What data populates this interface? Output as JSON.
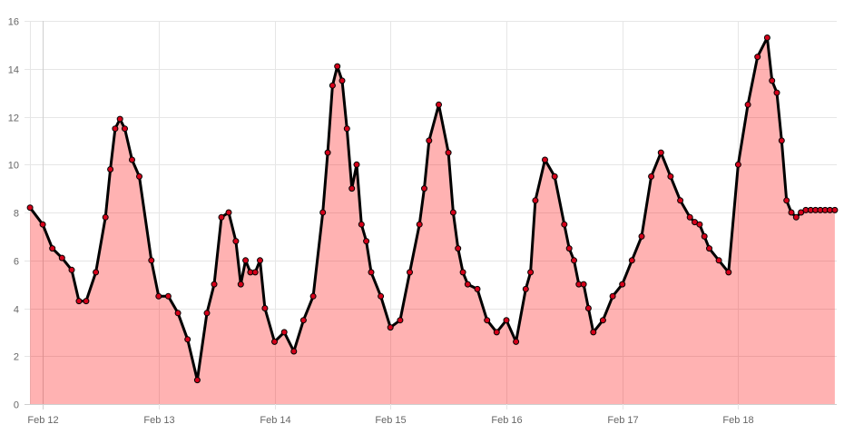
{
  "chart_data": {
    "type": "area",
    "title": "",
    "xlabel": "",
    "ylabel": "",
    "ylim": [
      0,
      16
    ],
    "y_ticks": [
      0,
      2,
      4,
      6,
      8,
      10,
      12,
      14,
      16
    ],
    "x_ticks": [
      "Feb 12",
      "Feb 13",
      "Feb 14",
      "Feb 15",
      "Feb 16",
      "Feb 17",
      "Feb 18"
    ],
    "x_range_days": [
      11.89,
      18.85
    ],
    "grid": true,
    "legend": "none",
    "colors": {
      "line": "#000000",
      "fill": "rgba(255,0,0,0.30)",
      "point_fill": "#d4001a",
      "point_stroke": "#000000",
      "grid": "#e6e6e6",
      "tick_text": "#666666"
    },
    "series": [
      {
        "x": [
          "2013-02-11 21:23",
          "2013-02-12 00:00",
          "2013-02-12 02:00",
          "2013-02-12 04:00",
          "2013-02-12 06:00",
          "2013-02-12 07:30",
          "2013-02-12 09:00",
          "2013-02-12 11:00",
          "2013-02-12 13:00",
          "2013-02-12 14:00",
          "2013-02-12 15:00",
          "2013-02-12 16:00",
          "2013-02-12 17:00",
          "2013-02-12 18:30",
          "2013-02-12 20:00",
          "2013-02-12 22:30",
          "2013-02-13 00:00",
          "2013-02-13 02:00",
          "2013-02-13 04:00",
          "2013-02-13 06:00",
          "2013-02-13 08:00",
          "2013-02-13 10:00",
          "2013-02-13 11:30",
          "2013-02-13 13:00",
          "2013-02-13 14:30",
          "2013-02-13 16:00",
          "2013-02-13 17:00",
          "2013-02-13 18:00",
          "2013-02-13 19:00",
          "2013-02-13 20:00",
          "2013-02-13 21:00",
          "2013-02-13 22:00",
          "2013-02-14 00:00",
          "2013-02-14 02:00",
          "2013-02-14 04:00",
          "2013-02-14 06:00",
          "2013-02-14 08:00",
          "2013-02-14 10:00",
          "2013-02-14 11:00",
          "2013-02-14 12:00",
          "2013-02-14 13:00",
          "2013-02-14 14:00",
          "2013-02-14 15:00",
          "2013-02-14 16:00",
          "2013-02-14 17:00",
          "2013-02-14 18:00",
          "2013-02-14 19:00",
          "2013-02-14 20:00",
          "2013-02-14 22:00",
          "2013-02-15 00:00",
          "2013-02-15 02:00",
          "2013-02-15 04:00",
          "2013-02-15 06:00",
          "2013-02-15 07:00",
          "2013-02-15 08:00",
          "2013-02-15 10:00",
          "2013-02-15 12:00",
          "2013-02-15 13:00",
          "2013-02-15 14:00",
          "2013-02-15 15:00",
          "2013-02-15 16:00",
          "2013-02-15 18:00",
          "2013-02-15 20:00",
          "2013-02-15 22:00",
          "2013-02-16 00:00",
          "2013-02-16 02:00",
          "2013-02-16 04:00",
          "2013-02-16 05:00",
          "2013-02-16 06:00",
          "2013-02-16 08:00",
          "2013-02-16 10:00",
          "2013-02-16 12:00",
          "2013-02-16 13:00",
          "2013-02-16 14:00",
          "2013-02-16 15:00",
          "2013-02-16 16:00",
          "2013-02-16 17:00",
          "2013-02-16 18:00",
          "2013-02-16 20:00",
          "2013-02-16 22:00",
          "2013-02-17 00:00",
          "2013-02-17 02:00",
          "2013-02-17 04:00",
          "2013-02-17 06:00",
          "2013-02-17 08:00",
          "2013-02-17 10:00",
          "2013-02-17 12:00",
          "2013-02-17 14:00",
          "2013-02-17 15:00",
          "2013-02-17 16:00",
          "2013-02-17 17:00",
          "2013-02-17 18:00",
          "2013-02-17 20:00",
          "2013-02-17 22:00",
          "2013-02-18 00:00",
          "2013-02-18 02:00",
          "2013-02-18 04:00",
          "2013-02-18 06:00",
          "2013-02-18 07:00",
          "2013-02-18 08:00",
          "2013-02-18 09:00",
          "2013-02-18 10:00",
          "2013-02-18 11:00",
          "2013-02-18 12:00",
          "2013-02-18 13:00",
          "2013-02-18 14:00",
          "2013-02-18 15:00",
          "2013-02-18 16:00",
          "2013-02-18 17:00",
          "2013-02-18 18:00",
          "2013-02-18 19:00",
          "2013-02-18 20:00"
        ],
        "values": [
          8.2,
          7.5,
          6.5,
          6.1,
          5.6,
          4.3,
          4.3,
          5.5,
          7.8,
          9.8,
          11.5,
          11.9,
          11.5,
          10.2,
          9.5,
          6.0,
          4.5,
          4.5,
          3.8,
          2.7,
          1.0,
          3.8,
          5.0,
          7.8,
          8.0,
          6.8,
          5.0,
          6.0,
          5.5,
          5.5,
          6.0,
          4.0,
          2.6,
          3.0,
          2.2,
          3.5,
          4.5,
          8.0,
          10.5,
          13.3,
          14.1,
          13.5,
          11.5,
          9.0,
          10.0,
          7.5,
          6.8,
          5.5,
          4.5,
          3.2,
          3.5,
          5.5,
          7.5,
          9.0,
          11.0,
          12.5,
          10.5,
          8.0,
          6.5,
          5.5,
          5.0,
          4.8,
          3.5,
          3.0,
          3.5,
          2.6,
          4.8,
          5.5,
          8.5,
          10.2,
          9.5,
          7.5,
          6.5,
          6.0,
          5.0,
          5.0,
          4.0,
          3.0,
          3.5,
          4.5,
          5.0,
          6.0,
          7.0,
          9.5,
          10.5,
          9.5,
          8.5,
          7.8,
          7.6,
          7.5,
          7.0,
          6.5,
          6.0,
          5.5,
          10.0,
          12.5,
          14.5,
          15.3,
          13.5,
          13.0,
          11.0,
          8.5,
          8.0,
          7.8,
          8.0,
          8.1,
          8.1,
          8.1,
          8.1,
          8.1,
          8.1,
          8.1
        ]
      }
    ]
  }
}
